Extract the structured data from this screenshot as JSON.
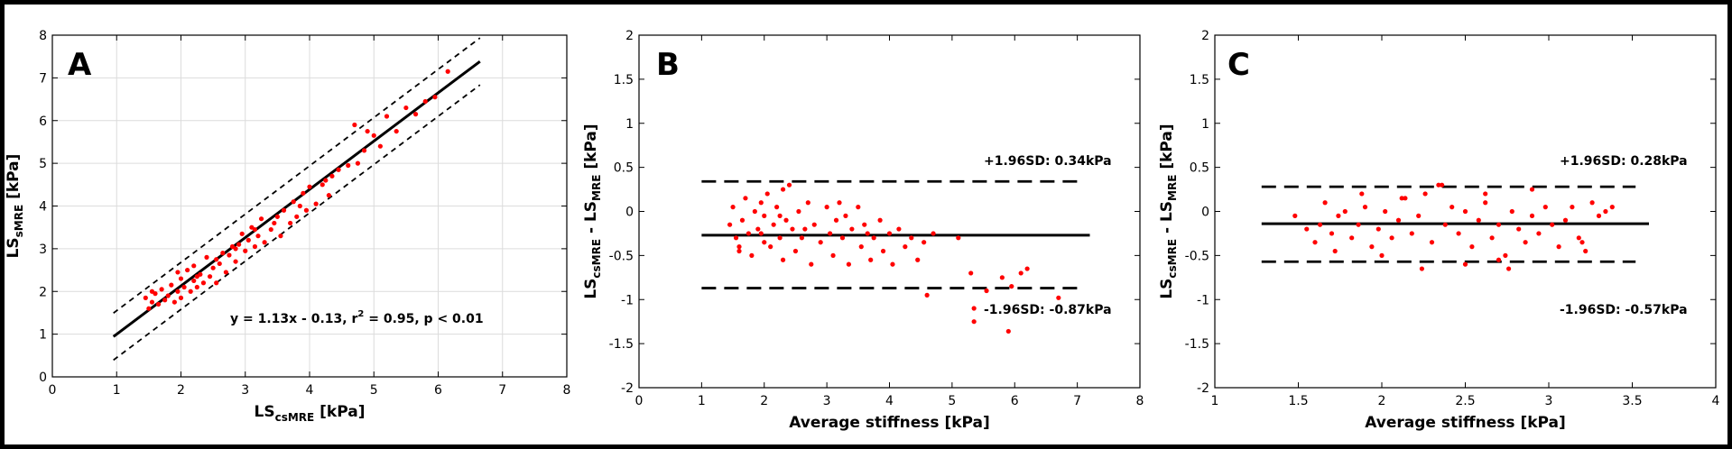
{
  "chart_data": [
    {
      "type": "scatter",
      "panel_label": "A",
      "xlabel": {
        "main": "LS",
        "sub": "csMRE",
        "unit": " [kPa]"
      },
      "ylabel": {
        "main": "LS",
        "sub": "sMRE",
        "unit": " [kPa]"
      },
      "xlim": [
        0,
        8
      ],
      "ylim": [
        0,
        8
      ],
      "xticks": [
        "0",
        "1",
        "2",
        "3",
        "4",
        "5",
        "6",
        "7",
        "8"
      ],
      "yticks": [
        "0",
        "1",
        "2",
        "3",
        "4",
        "5",
        "6",
        "7",
        "8"
      ],
      "grid": true,
      "regression": {
        "slope": 1.13,
        "intercept": -0.13,
        "x_range": [
          0.95,
          6.65
        ]
      },
      "confidence_bands": {
        "offset": 0.55,
        "x_range": [
          0.95,
          6.65
        ]
      },
      "annotation": {
        "pre": "y = 1.13x - 0.13, r",
        "sup": "2",
        "post": " = 0.95, p < 0.01"
      },
      "points": [
        [
          1.45,
          1.85
        ],
        [
          1.5,
          1.6
        ],
        [
          1.55,
          1.75
        ],
        [
          1.6,
          1.95
        ],
        [
          1.65,
          1.7
        ],
        [
          1.7,
          2.05
        ],
        [
          1.75,
          1.8
        ],
        [
          1.8,
          1.9
        ],
        [
          1.85,
          2.15
        ],
        [
          1.9,
          1.75
        ],
        [
          1.95,
          2.0
        ],
        [
          2.0,
          2.3
        ],
        [
          2.0,
          1.85
        ],
        [
          2.05,
          2.1
        ],
        [
          2.1,
          2.5
        ],
        [
          2.15,
          2.0
        ],
        [
          2.2,
          2.25
        ],
        [
          2.2,
          2.6
        ],
        [
          2.25,
          2.1
        ],
        [
          2.3,
          2.4
        ],
        [
          2.35,
          2.2
        ],
        [
          2.4,
          2.8
        ],
        [
          2.45,
          2.35
        ],
        [
          2.5,
          2.55
        ],
        [
          2.55,
          2.2
        ],
        [
          2.6,
          2.65
        ],
        [
          2.65,
          2.9
        ],
        [
          2.7,
          2.45
        ],
        [
          2.75,
          2.85
        ],
        [
          2.8,
          3.05
        ],
        [
          2.85,
          2.7
        ],
        [
          2.9,
          3.1
        ],
        [
          2.95,
          3.35
        ],
        [
          3.0,
          2.95
        ],
        [
          3.05,
          3.2
        ],
        [
          3.1,
          3.5
        ],
        [
          3.15,
          3.05
        ],
        [
          3.2,
          3.3
        ],
        [
          3.25,
          3.7
        ],
        [
          3.3,
          3.15
        ],
        [
          3.4,
          3.45
        ],
        [
          3.5,
          3.75
        ],
        [
          3.55,
          3.3
        ],
        [
          3.6,
          3.9
        ],
        [
          3.7,
          3.6
        ],
        [
          3.75,
          4.1
        ],
        [
          3.8,
          3.75
        ],
        [
          3.9,
          4.3
        ],
        [
          3.95,
          3.9
        ],
        [
          4.0,
          4.45
        ],
        [
          4.1,
          4.05
        ],
        [
          4.2,
          4.5
        ],
        [
          4.3,
          4.25
        ],
        [
          4.35,
          4.7
        ],
        [
          4.45,
          4.85
        ],
        [
          4.6,
          4.95
        ],
        [
          4.7,
          5.9
        ],
        [
          4.75,
          5.0
        ],
        [
          4.85,
          5.3
        ],
        [
          4.9,
          5.75
        ],
        [
          5.0,
          5.65
        ],
        [
          5.1,
          5.4
        ],
        [
          5.2,
          6.1
        ],
        [
          5.35,
          5.75
        ],
        [
          5.5,
          6.3
        ],
        [
          5.65,
          6.15
        ],
        [
          5.8,
          6.45
        ],
        [
          5.95,
          6.55
        ],
        [
          6.15,
          7.15
        ],
        [
          1.55,
          2.0
        ],
        [
          1.95,
          2.45
        ],
        [
          2.25,
          2.35
        ],
        [
          2.55,
          2.75
        ],
        [
          2.85,
          3.0
        ],
        [
          3.15,
          3.45
        ],
        [
          3.45,
          3.6
        ],
        [
          3.85,
          4.0
        ],
        [
          4.25,
          4.6
        ]
      ]
    },
    {
      "type": "scatter",
      "panel_label": "B",
      "xlabel": {
        "main": "Average stiffness [kPa]"
      },
      "ylabel": {
        "main": "LS",
        "sub": "csMRE",
        "mid": " - LS",
        "sub2": "MRE",
        "unit": " [kPa]"
      },
      "xlim": [
        0,
        8
      ],
      "ylim": [
        -2,
        2
      ],
      "xticks": [
        "0",
        "1",
        "2",
        "3",
        "4",
        "5",
        "6",
        "7",
        "8"
      ],
      "yticks": [
        "-2",
        "-1.5",
        "-1",
        "-0.5",
        "0",
        "0.5",
        "1",
        "1.5",
        "2"
      ],
      "grid": false,
      "mean_line": {
        "value": -0.27,
        "x_range": [
          1.0,
          7.2
        ]
      },
      "upper_loa": {
        "value": 0.34,
        "label": "+1.96SD: 0.34kPa",
        "x_range": [
          1.0,
          7.0
        ]
      },
      "lower_loa": {
        "value": -0.87,
        "label": "-1.96SD: -0.87kPa",
        "x_range": [
          1.0,
          7.0
        ]
      },
      "points": [
        [
          1.45,
          -0.15
        ],
        [
          1.5,
          0.05
        ],
        [
          1.55,
          -0.3
        ],
        [
          1.6,
          -0.45
        ],
        [
          1.65,
          -0.1
        ],
        [
          1.7,
          0.15
        ],
        [
          1.75,
          -0.25
        ],
        [
          1.8,
          -0.5
        ],
        [
          1.85,
          0.0
        ],
        [
          1.9,
          -0.2
        ],
        [
          1.95,
          0.1
        ],
        [
          2.0,
          -0.35
        ],
        [
          2.0,
          -0.05
        ],
        [
          2.05,
          0.2
        ],
        [
          2.1,
          -0.4
        ],
        [
          2.15,
          -0.15
        ],
        [
          2.2,
          0.05
        ],
        [
          2.25,
          -0.3
        ],
        [
          2.3,
          0.25
        ],
        [
          2.3,
          -0.55
        ],
        [
          2.35,
          -0.1
        ],
        [
          2.4,
          0.3
        ],
        [
          2.45,
          -0.2
        ],
        [
          2.5,
          -0.45
        ],
        [
          2.55,
          0.0
        ],
        [
          2.6,
          -0.3
        ],
        [
          2.7,
          0.1
        ],
        [
          2.75,
          -0.6
        ],
        [
          2.8,
          -0.15
        ],
        [
          2.9,
          -0.35
        ],
        [
          3.0,
          0.05
        ],
        [
          3.05,
          -0.25
        ],
        [
          3.1,
          -0.5
        ],
        [
          3.2,
          0.1
        ],
        [
          3.25,
          -0.3
        ],
        [
          3.3,
          -0.05
        ],
        [
          3.35,
          -0.6
        ],
        [
          3.4,
          -0.2
        ],
        [
          3.5,
          0.05
        ],
        [
          3.55,
          -0.4
        ],
        [
          3.6,
          -0.15
        ],
        [
          3.7,
          -0.55
        ],
        [
          3.75,
          -0.3
        ],
        [
          3.85,
          -0.1
        ],
        [
          3.9,
          -0.45
        ],
        [
          4.0,
          -0.25
        ],
        [
          4.05,
          -0.6
        ],
        [
          4.15,
          -0.2
        ],
        [
          4.25,
          -0.4
        ],
        [
          4.35,
          -0.3
        ],
        [
          4.45,
          -0.55
        ],
        [
          4.55,
          -0.35
        ],
        [
          4.6,
          -0.95
        ],
        [
          4.7,
          -0.25
        ],
        [
          5.1,
          -0.3
        ],
        [
          5.3,
          -0.7
        ],
        [
          5.35,
          -1.1
        ],
        [
          5.35,
          -1.25
        ],
        [
          5.55,
          -0.9
        ],
        [
          5.8,
          -0.75
        ],
        [
          5.95,
          -0.85
        ],
        [
          5.9,
          -1.36
        ],
        [
          6.1,
          -0.7
        ],
        [
          6.2,
          -0.65
        ],
        [
          6.7,
          -0.98
        ],
        [
          1.6,
          -0.4
        ],
        [
          1.95,
          -0.25
        ],
        [
          2.25,
          -0.05
        ],
        [
          2.65,
          -0.2
        ],
        [
          3.15,
          -0.1
        ],
        [
          3.65,
          -0.25
        ]
      ]
    },
    {
      "type": "scatter",
      "panel_label": "C",
      "xlabel": {
        "main": "Average stiffness [kPa]"
      },
      "ylabel": {
        "main": "LS",
        "sub": "csMRE",
        "mid": " - LS",
        "sub2": "MRE",
        "unit": " [kPa]"
      },
      "xlim": [
        1,
        4
      ],
      "ylim": [
        -2,
        2
      ],
      "xticks": [
        "1",
        "1.5",
        "2",
        "2.5",
        "3",
        "3.5",
        "4"
      ],
      "yticks": [
        "-2",
        "-1.5",
        "-1",
        "-0.5",
        "0",
        "0.5",
        "1",
        "1.5",
        "2"
      ],
      "grid": false,
      "mean_line": {
        "value": -0.14,
        "x_range": [
          1.28,
          3.6
        ]
      },
      "upper_loa": {
        "value": 0.28,
        "label": "+1.96SD: 0.28kPa",
        "x_range": [
          1.28,
          3.52
        ]
      },
      "lower_loa": {
        "value": -0.57,
        "label": "-1.96SD: -0.57kPa",
        "x_range": [
          1.28,
          3.52
        ]
      },
      "points": [
        [
          1.48,
          -0.05
        ],
        [
          1.55,
          -0.2
        ],
        [
          1.6,
          -0.35
        ],
        [
          1.63,
          -0.15
        ],
        [
          1.66,
          0.1
        ],
        [
          1.7,
          -0.25
        ],
        [
          1.74,
          -0.05
        ],
        [
          1.78,
          0.0
        ],
        [
          1.82,
          -0.3
        ],
        [
          1.86,
          -0.15
        ],
        [
          1.9,
          0.05
        ],
        [
          1.94,
          -0.4
        ],
        [
          1.98,
          -0.2
        ],
        [
          2.02,
          0.0
        ],
        [
          2.06,
          -0.3
        ],
        [
          2.1,
          -0.1
        ],
        [
          2.14,
          0.15
        ],
        [
          2.18,
          -0.25
        ],
        [
          2.22,
          -0.05
        ],
        [
          2.26,
          0.2
        ],
        [
          2.3,
          -0.35
        ],
        [
          2.34,
          0.3
        ],
        [
          2.38,
          -0.15
        ],
        [
          2.42,
          0.05
        ],
        [
          2.46,
          -0.25
        ],
        [
          2.5,
          0.0
        ],
        [
          2.54,
          -0.4
        ],
        [
          2.58,
          -0.1
        ],
        [
          2.62,
          0.1
        ],
        [
          2.66,
          -0.3
        ],
        [
          2.7,
          -0.15
        ],
        [
          2.74,
          -0.5
        ],
        [
          2.78,
          0.0
        ],
        [
          2.82,
          -0.2
        ],
        [
          2.86,
          -0.35
        ],
        [
          2.9,
          -0.05
        ],
        [
          2.94,
          -0.25
        ],
        [
          2.98,
          0.05
        ],
        [
          3.02,
          -0.15
        ],
        [
          3.06,
          -0.4
        ],
        [
          3.1,
          -0.1
        ],
        [
          3.14,
          0.05
        ],
        [
          3.18,
          -0.3
        ],
        [
          3.22,
          -0.45
        ],
        [
          3.26,
          0.1
        ],
        [
          3.3,
          -0.05
        ],
        [
          3.34,
          0.0
        ],
        [
          3.38,
          0.05
        ],
        [
          1.72,
          -0.45
        ],
        [
          2.0,
          -0.5
        ],
        [
          2.24,
          -0.65
        ],
        [
          2.5,
          -0.6
        ],
        [
          2.7,
          -0.55
        ],
        [
          2.76,
          -0.65
        ],
        [
          2.12,
          0.15
        ],
        [
          2.36,
          0.3
        ],
        [
          1.88,
          0.2
        ],
        [
          2.62,
          0.2
        ],
        [
          2.9,
          0.25
        ],
        [
          3.2,
          -0.35
        ]
      ]
    }
  ]
}
